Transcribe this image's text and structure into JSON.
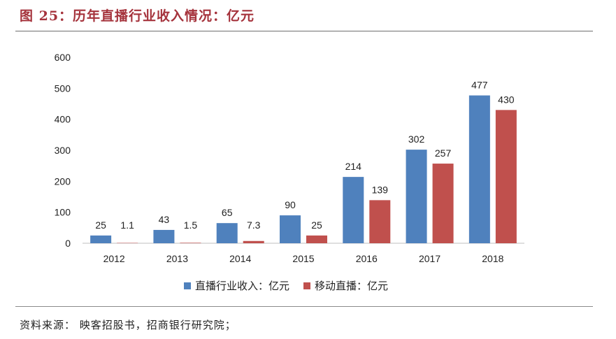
{
  "title": "图 25：历年直播行业收入情况：亿元",
  "source": "资料来源：  映客招股书，招商银行研究院；",
  "colors": {
    "title": "#a5333c",
    "series1": "#4f81bd",
    "series2": "#c0504d"
  },
  "chart_data": {
    "type": "bar",
    "categories": [
      "2012",
      "2013",
      "2014",
      "2015",
      "2016",
      "2017",
      "2018"
    ],
    "series": [
      {
        "name": "直播行业收入：亿元",
        "values": [
          25,
          43,
          65,
          90,
          214,
          302,
          477
        ],
        "labels": [
          "25",
          "43",
          "65",
          "90",
          "214",
          "302",
          "477"
        ]
      },
      {
        "name": "移动直播：亿元",
        "values": [
          1.1,
          1.5,
          7.3,
          25,
          139,
          257,
          430
        ],
        "labels": [
          "1.1",
          "1.5",
          "7.3",
          "25",
          "139",
          "257",
          "430"
        ]
      }
    ],
    "yticks": [
      "0",
      "100",
      "200",
      "300",
      "400",
      "500",
      "600"
    ],
    "ylim": [
      0,
      600
    ],
    "grid": false,
    "legend": "bottom"
  }
}
